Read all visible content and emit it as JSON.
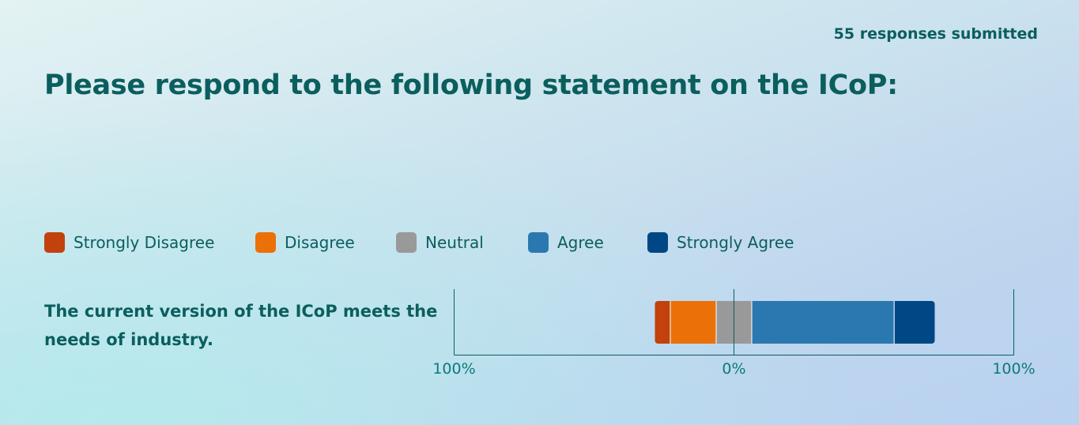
{
  "header": {
    "responses": "55 responses submitted",
    "title": "Please respond to the following statement on the ICoP:"
  },
  "chart_data": {
    "type": "bar",
    "orientation": "horizontal",
    "stacked": "diverging",
    "categories": [
      "The current version of the ICoP meets the needs of industry."
    ],
    "series": [
      {
        "name": "Strongly Disagree",
        "color": "#c2410c",
        "values": [
          5.5
        ]
      },
      {
        "name": "Disagree",
        "color": "#ec7008",
        "values": [
          16.4
        ]
      },
      {
        "name": "Neutral",
        "color": "#999999",
        "values": [
          12.7
        ]
      },
      {
        "name": "Agree",
        "color": "#2b78b0",
        "values": [
          50.9
        ]
      },
      {
        "name": "Strongly Agree",
        "color": "#004785",
        "values": [
          14.5
        ]
      }
    ],
    "neutral_split": "center",
    "xlim": [
      -100,
      100
    ],
    "xticks": [
      -100,
      0,
      100
    ],
    "xtick_labels": [
      "100%",
      "0%",
      "100%"
    ],
    "legend_position": "top",
    "axis_color": "#0b5e5e"
  }
}
